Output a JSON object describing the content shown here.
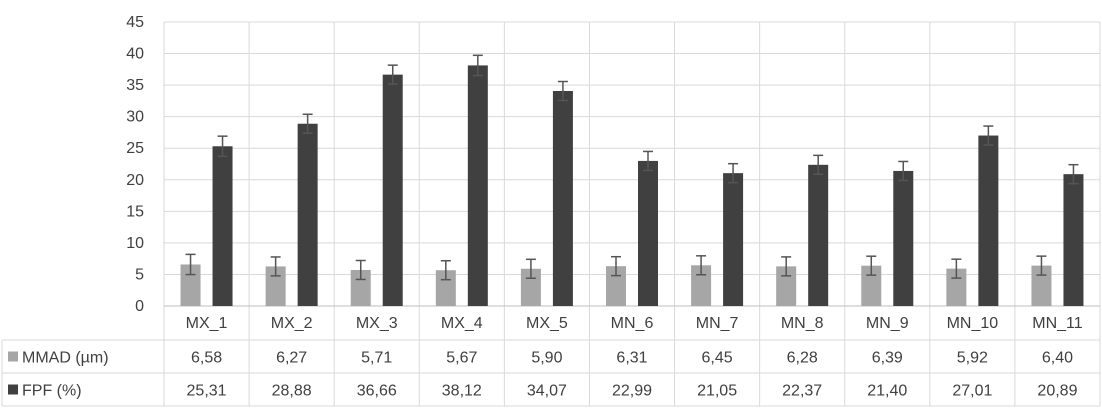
{
  "chart_data": {
    "type": "bar",
    "title": "",
    "xlabel": "",
    "ylabel": "",
    "ylim": [
      0,
      45
    ],
    "yticks": [
      0,
      5,
      10,
      15,
      20,
      25,
      30,
      35,
      40,
      45
    ],
    "grid": true,
    "legend": "data-table",
    "categories": [
      "MX_1",
      "MX_2",
      "MX_3",
      "MX_4",
      "MX_5",
      "MN_6",
      "MN_7",
      "MN_8",
      "MN_9",
      "MN_10",
      "MN_11"
    ],
    "series": [
      {
        "name": "MMAD (µm)",
        "color": "#a6a6a6",
        "values": [
          6.58,
          6.27,
          5.71,
          5.67,
          5.9,
          6.31,
          6.45,
          6.28,
          6.39,
          5.92,
          6.4
        ],
        "labels": [
          "6,58",
          "6,27",
          "5,71",
          "5,67",
          "5,90",
          "6,31",
          "6,45",
          "6,28",
          "6,39",
          "5,92",
          "6,40"
        ],
        "error": [
          1.6,
          1.5,
          1.5,
          1.5,
          1.5,
          1.5,
          1.5,
          1.5,
          1.5,
          1.5,
          1.5
        ]
      },
      {
        "name": "FPF (%)",
        "color": "#404040",
        "values": [
          25.31,
          28.88,
          36.66,
          38.12,
          34.07,
          22.99,
          21.05,
          22.37,
          21.4,
          27.01,
          20.89
        ],
        "labels": [
          "25,31",
          "28,88",
          "36,66",
          "38,12",
          "34,07",
          "22,99",
          "21,05",
          "22,37",
          "21,40",
          "27,01",
          "20,89"
        ],
        "error": [
          1.6,
          1.5,
          1.5,
          1.6,
          1.5,
          1.5,
          1.5,
          1.5,
          1.5,
          1.5,
          1.5
        ]
      }
    ]
  }
}
